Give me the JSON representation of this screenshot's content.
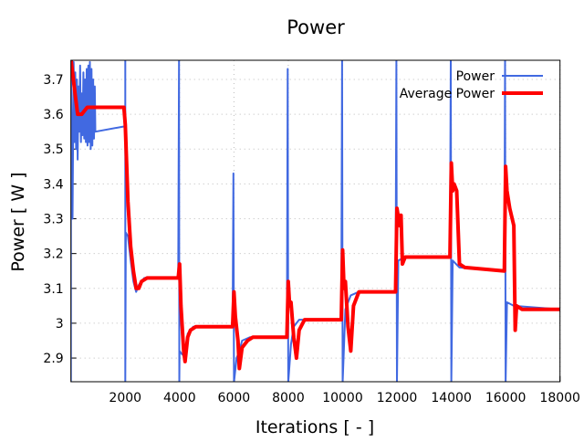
{
  "chart_data": {
    "type": "line",
    "title": "Power",
    "xlabel": "Iterations [ - ]",
    "ylabel": "Power [ W ]",
    "xlim": [
      0,
      18000
    ],
    "ylim": [
      2.832,
      3.755
    ],
    "xticks": [
      2000,
      4000,
      6000,
      8000,
      10000,
      12000,
      14000,
      16000,
      18000
    ],
    "yticks": [
      2.9,
      3,
      3.1,
      3.2,
      3.3,
      3.4,
      3.5,
      3.6,
      3.7
    ],
    "grid": true,
    "legend_position": "top-right",
    "series": [
      {
        "name": "Power",
        "color": "#4169e1",
        "points": [
          [
            0,
            2.83
          ],
          [
            0,
            3.76
          ],
          [
            60,
            3.3
          ],
          [
            100,
            3.75
          ],
          [
            130,
            3.52
          ],
          [
            160,
            3.72
          ],
          [
            190,
            3.5
          ],
          [
            220,
            3.7
          ],
          [
            250,
            3.47
          ],
          [
            280,
            3.68
          ],
          [
            310,
            3.55
          ],
          [
            340,
            3.74
          ],
          [
            370,
            3.52
          ],
          [
            400,
            3.66
          ],
          [
            430,
            3.54
          ],
          [
            460,
            3.72
          ],
          [
            490,
            3.53
          ],
          [
            520,
            3.7
          ],
          [
            550,
            3.52
          ],
          [
            580,
            3.73
          ],
          [
            610,
            3.51
          ],
          [
            640,
            3.74
          ],
          [
            670,
            3.52
          ],
          [
            700,
            3.75
          ],
          [
            730,
            3.5
          ],
          [
            760,
            3.73
          ],
          [
            790,
            3.51
          ],
          [
            820,
            3.7
          ],
          [
            850,
            3.53
          ],
          [
            880,
            3.68
          ],
          [
            900,
            3.55
          ],
          [
            1950,
            3.565
          ],
          [
            2000,
            3.56
          ],
          [
            2000,
            3.76
          ],
          [
            2000,
            2.83
          ],
          [
            2020,
            3.26
          ],
          [
            2100,
            3.25
          ],
          [
            2200,
            3.18
          ],
          [
            2300,
            3.12
          ],
          [
            2400,
            3.09
          ],
          [
            2500,
            3.11
          ],
          [
            2700,
            3.13
          ],
          [
            3950,
            3.13
          ],
          [
            3980,
            3.76
          ],
          [
            3990,
            2.83
          ],
          [
            4000,
            2.92
          ],
          [
            4100,
            2.91
          ],
          [
            4200,
            2.92
          ],
          [
            4300,
            2.97
          ],
          [
            4500,
            2.99
          ],
          [
            5950,
            2.99
          ],
          [
            5980,
            3.43
          ],
          [
            6000,
            2.83
          ],
          [
            6100,
            2.9
          ],
          [
            6200,
            2.92
          ],
          [
            6300,
            2.95
          ],
          [
            6600,
            2.96
          ],
          [
            7950,
            2.96
          ],
          [
            7980,
            3.73
          ],
          [
            8000,
            2.83
          ],
          [
            8100,
            2.94
          ],
          [
            8200,
            2.99
          ],
          [
            8400,
            3.01
          ],
          [
            9950,
            3.01
          ],
          [
            9980,
            3.76
          ],
          [
            10000,
            2.83
          ],
          [
            10100,
            3.04
          ],
          [
            10300,
            3.08
          ],
          [
            10600,
            3.09
          ],
          [
            11950,
            3.09
          ],
          [
            11980,
            3.76
          ],
          [
            12000,
            2.83
          ],
          [
            12050,
            3.18
          ],
          [
            12300,
            3.19
          ],
          [
            13950,
            3.19
          ],
          [
            13980,
            3.76
          ],
          [
            14000,
            2.83
          ],
          [
            14050,
            3.18
          ],
          [
            14300,
            3.16
          ],
          [
            15950,
            3.15
          ],
          [
            15980,
            3.76
          ],
          [
            16000,
            2.83
          ],
          [
            16050,
            3.06
          ],
          [
            16300,
            3.05
          ],
          [
            18000,
            3.04
          ]
        ]
      },
      {
        "name": "Average Power",
        "color": "#ff0000",
        "points": [
          [
            0,
            3.76
          ],
          [
            150,
            3.66
          ],
          [
            250,
            3.6
          ],
          [
            400,
            3.6
          ],
          [
            500,
            3.61
          ],
          [
            600,
            3.62
          ],
          [
            1950,
            3.62
          ],
          [
            2000,
            3.57
          ],
          [
            2100,
            3.35
          ],
          [
            2200,
            3.22
          ],
          [
            2300,
            3.15
          ],
          [
            2400,
            3.1
          ],
          [
            2500,
            3.1
          ],
          [
            2600,
            3.12
          ],
          [
            2800,
            3.13
          ],
          [
            3950,
            3.13
          ],
          [
            4000,
            3.17
          ],
          [
            4050,
            3.05
          ],
          [
            4150,
            2.92
          ],
          [
            4200,
            2.89
          ],
          [
            4300,
            2.96
          ],
          [
            4400,
            2.98
          ],
          [
            4600,
            2.99
          ],
          [
            5950,
            2.99
          ],
          [
            6000,
            3.09
          ],
          [
            6050,
            3.02
          ],
          [
            6150,
            2.95
          ],
          [
            6200,
            2.87
          ],
          [
            6300,
            2.93
          ],
          [
            6500,
            2.95
          ],
          [
            6700,
            2.96
          ],
          [
            7950,
            2.96
          ],
          [
            8000,
            3.12
          ],
          [
            8050,
            3.05
          ],
          [
            8100,
            3.06
          ],
          [
            8200,
            2.96
          ],
          [
            8300,
            2.9
          ],
          [
            8400,
            2.98
          ],
          [
            8600,
            3.01
          ],
          [
            9950,
            3.01
          ],
          [
            10000,
            3.21
          ],
          [
            10050,
            3.1
          ],
          [
            10100,
            3.12
          ],
          [
            10200,
            2.99
          ],
          [
            10300,
            2.92
          ],
          [
            10400,
            3.05
          ],
          [
            10600,
            3.09
          ],
          [
            11950,
            3.09
          ],
          [
            12000,
            3.33
          ],
          [
            12100,
            3.28
          ],
          [
            12150,
            3.31
          ],
          [
            12200,
            3.17
          ],
          [
            12300,
            3.19
          ],
          [
            13950,
            3.19
          ],
          [
            14000,
            3.46
          ],
          [
            14050,
            3.38
          ],
          [
            14100,
            3.4
          ],
          [
            14200,
            3.38
          ],
          [
            14300,
            3.17
          ],
          [
            14500,
            3.16
          ],
          [
            15950,
            3.15
          ],
          [
            16000,
            3.45
          ],
          [
            16050,
            3.38
          ],
          [
            16150,
            3.33
          ],
          [
            16300,
            3.28
          ],
          [
            16350,
            2.98
          ],
          [
            16400,
            3.05
          ],
          [
            16600,
            3.04
          ],
          [
            18000,
            3.04
          ]
        ]
      }
    ]
  }
}
